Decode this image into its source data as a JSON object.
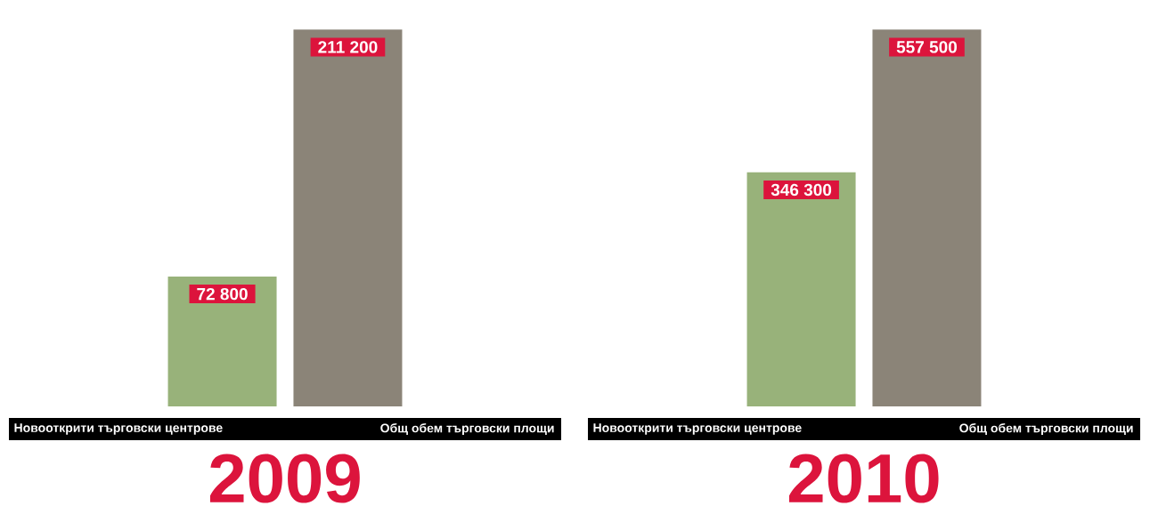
{
  "chart_data": [
    {
      "type": "bar",
      "title": "2009",
      "categories": [
        "Новооткрити търговски центрове",
        "Общ обем търговски площи"
      ],
      "values": [
        72800,
        211200
      ],
      "value_labels": [
        "72 800",
        "211 200"
      ],
      "colors": [
        "#98b27a",
        "#8b8478"
      ]
    },
    {
      "type": "bar",
      "title": "2010",
      "categories": [
        "Новооткрити търговски центрове",
        "Общ обем търговски площи"
      ],
      "values": [
        346300,
        557500
      ],
      "value_labels": [
        "346 300",
        "557 500"
      ],
      "colors": [
        "#98b27a",
        "#8b8478"
      ]
    }
  ]
}
